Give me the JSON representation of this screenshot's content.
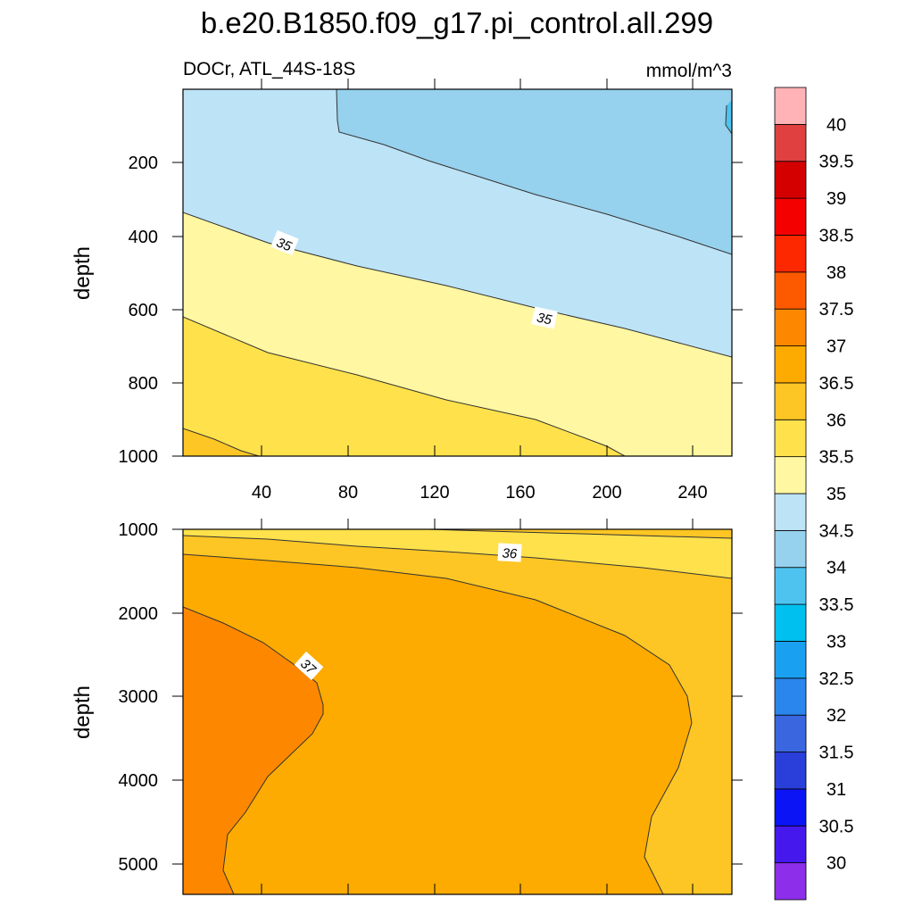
{
  "chart_data": {
    "type": "contour",
    "title": "b.e20.B1850.f09_g17.pi_control.all.299",
    "variable_label": "DOCr, ATL_44S-18S",
    "units_label": "mmol/m^3",
    "panels": [
      {
        "name": "upper",
        "ylabel": "depth",
        "xlim": [
          0,
          262
        ],
        "ylim": [
          0,
          1000
        ],
        "y_reversed": true,
        "x_ticks": [
          "40",
          "80",
          "120",
          "160",
          "200",
          "240"
        ],
        "y_ticks": [
          "200",
          "400",
          "600",
          "800",
          "1000"
        ],
        "contour_labels": [
          "35",
          "35"
        ],
        "boundaries": [
          {
            "level": 34.5,
            "points": [
              [
                73,
                0
              ],
              [
                74,
                90
              ],
              [
                120,
                140
              ],
              [
                160,
                190
              ],
              [
                200,
                245
              ],
              [
                240,
                300
              ],
              [
                262,
                338
              ]
            ]
          },
          {
            "level": 35,
            "points": [
              [
                0,
                335
              ],
              [
                40,
                420
              ],
              [
                80,
                475
              ],
              [
                120,
                530
              ],
              [
                160,
                585
              ],
              [
                200,
                640
              ],
              [
                240,
                705
              ],
              [
                262,
                740
              ]
            ]
          },
          {
            "level": 35.5,
            "points": [
              [
                0,
                630
              ],
              [
                40,
                720
              ],
              [
                80,
                780
              ],
              [
                120,
                840
              ],
              [
                160,
                900
              ],
              [
                200,
                960
              ],
              [
                210,
                1000
              ]
            ]
          },
          {
            "level": 36,
            "points": [
              [
                0,
                928
              ],
              [
                20,
                955
              ],
              [
                40,
                985
              ],
              [
                48,
                1000
              ]
            ]
          }
        ],
        "fill_levels": [
          34,
          34.5,
          35,
          35.5,
          36
        ]
      },
      {
        "name": "lower",
        "ylabel": "depth",
        "xlim": [
          0,
          262
        ],
        "ylim": [
          1000,
          5400
        ],
        "y_reversed": true,
        "x_ticks": [],
        "y_ticks": [
          "1000",
          "2000",
          "3000",
          "4000",
          "5000"
        ],
        "contour_labels": [
          "36",
          "37"
        ],
        "boundaries": [
          {
            "level": 35.5,
            "points": [
              [
                0,
                1000
              ],
              [
                40,
                1010
              ],
              [
                80,
                1020
              ],
              [
                120,
                1030
              ],
              [
                160,
                1040
              ],
              [
                200,
                1060
              ],
              [
                240,
                1095
              ],
              [
                262,
                1100
              ]
            ]
          },
          {
            "level": 36,
            "points": [
              [
                0,
                1300
              ],
              [
                40,
                1330
              ],
              [
                80,
                1370
              ],
              [
                120,
                1410
              ],
              [
                160,
                1450
              ],
              [
                200,
                1500
              ],
              [
                240,
                1550
              ],
              [
                262,
                1570
              ]
            ]
          },
          {
            "level": 36.5,
            "points": [
              [
                70,
                5400
              ],
              [
                40,
                4900
              ],
              [
                30,
                4400
              ],
              [
                40,
                3900
              ],
              [
                55,
                3500
              ],
              [
                60,
                3000
              ],
              [
                55,
                2600
              ],
              [
                40,
                2300
              ],
              [
                20,
                2050
              ],
              [
                0,
                1920
              ]
            ]
          },
          {
            "level": 36.5,
            "points": [
              [
                220,
                5400
              ],
              [
                220,
                4900
              ],
              [
                215,
                4400
              ],
              [
                230,
                3900
              ],
              [
                240,
                3000
              ],
              [
                225,
                2500
              ],
              [
                190,
                2100
              ],
              [
                150,
                1900
              ],
              [
                100,
                1700
              ],
              [
                0,
                1400
              ]
            ]
          }
        ]
      }
    ],
    "colorbar": {
      "labels": [
        "30",
        "30.5",
        "31",
        "31.5",
        "32",
        "32.5",
        "33",
        "33.5",
        "34",
        "34.5",
        "35",
        "35.5",
        "36",
        "36.5",
        "37",
        "37.5",
        "38",
        "38.5",
        "39",
        "39.5",
        "40"
      ],
      "colors": [
        "#8c2eea",
        "#4518ee",
        "#0a14f5",
        "#2a3ed9",
        "#3a66e0",
        "#2a86ec",
        "#1aa0f0",
        "#00c0ef",
        "#4fc3f0",
        "#96d1ed",
        "#bde3f6",
        "#fff7a1",
        "#ffe14c",
        "#fdc624",
        "#fdab00",
        "#fd8800",
        "#fd5a00",
        "#fd2800",
        "#f40000",
        "#d40000",
        "#e04040",
        "#ffb3b6"
      ]
    }
  }
}
